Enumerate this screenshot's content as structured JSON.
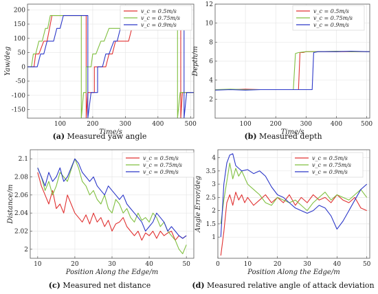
{
  "colors": {
    "red": "#e03030",
    "green": "#7fbf3f",
    "blue": "#2a36c8",
    "grid": "#e6e6e6",
    "axis": "#555555"
  },
  "captions": [
    {
      "letter": "(a)",
      "text": " Measured yaw angle"
    },
    {
      "letter": "(b)",
      "text": " Measured depth"
    },
    {
      "letter": "(c)",
      "text": " Measured net distance"
    },
    {
      "letter": "(d)",
      "text": " Measured relative angle of attack deviation"
    }
  ],
  "chart_data": [
    {
      "type": "line",
      "xlabel": "Time/s",
      "ylabel": "Yaw/deg",
      "xlim": [
        0,
        510
      ],
      "ylim": [
        -180,
        220
      ],
      "xticks": [
        100,
        200,
        300,
        400,
        500
      ],
      "yticks": [
        -150,
        -100,
        -50,
        0,
        50,
        100,
        150,
        200
      ],
      "grid": true,
      "legend_position": "top-right",
      "series": [
        {
          "name": "v_c = 0.5m/s",
          "color": "red",
          "x": [
            0,
            20,
            25,
            35,
            50,
            60,
            75,
            80,
            100,
            180,
            180,
            185,
            195,
            205,
            205,
            215,
            220,
            240,
            250,
            260,
            270,
            280,
            300,
            310,
            320,
            330,
            340,
            350,
            360,
            375,
            380,
            400,
            470,
            470,
            475,
            490,
            495,
            495,
            510
          ],
          "y": [
            0,
            0,
            45,
            45,
            90,
            90,
            180,
            180,
            180,
            180,
            -180,
            -90,
            -90,
            -90,
            0,
            0,
            0,
            0,
            45,
            45,
            90,
            90,
            90,
            90,
            135,
            135,
            180,
            180,
            180,
            180,
            180,
            180,
            180,
            -180,
            -90,
            -90,
            -90,
            -90,
            -90
          ]
        },
        {
          "name": "v_c = 0.75m/s",
          "color": "green",
          "x": [
            0,
            12,
            18,
            25,
            35,
            45,
            55,
            62,
            70,
            165,
            165,
            172,
            180,
            180,
            195,
            200,
            210,
            225,
            235,
            250,
            260,
            290,
            300,
            320,
            330,
            360,
            370,
            460,
            460,
            468,
            485,
            485,
            510
          ],
          "y": [
            0,
            0,
            45,
            45,
            90,
            90,
            135,
            135,
            180,
            180,
            -180,
            -90,
            -90,
            0,
            0,
            45,
            45,
            90,
            90,
            135,
            135,
            135,
            135,
            180,
            180,
            180,
            180,
            180,
            -180,
            -90,
            -90,
            -90,
            -90
          ]
        },
        {
          "name": "v_c = 0.9m/s",
          "color": "blue",
          "x": [
            0,
            30,
            40,
            50,
            60,
            80,
            90,
            100,
            110,
            185,
            185,
            195,
            215,
            215,
            230,
            240,
            250,
            265,
            275,
            285,
            300,
            310,
            330,
            345,
            355,
            370,
            380,
            480,
            480,
            488,
            500,
            510
          ],
          "y": [
            0,
            0,
            45,
            45,
            90,
            90,
            135,
            135,
            180,
            180,
            -180,
            -90,
            -90,
            0,
            0,
            45,
            45,
            90,
            90,
            135,
            135,
            135,
            135,
            180,
            180,
            180,
            180,
            180,
            -180,
            -90,
            -90,
            -90
          ]
        }
      ]
    },
    {
      "type": "line",
      "xlabel": "Time/s",
      "ylabel": "Depth/m",
      "xlim": [
        0,
        510
      ],
      "ylim": [
        0,
        12
      ],
      "xticks": [
        100,
        200,
        300,
        400,
        500
      ],
      "yticks": [
        2,
        4,
        6,
        8,
        10,
        12
      ],
      "grid": true,
      "legend_position": "top-right",
      "series": [
        {
          "name": "v_c = 0.5m/s",
          "color": "red",
          "x": [
            0,
            50,
            100,
            150,
            200,
            250,
            275,
            280,
            290,
            300,
            350,
            400,
            450,
            510
          ],
          "y": [
            3.0,
            3.0,
            3.05,
            3.0,
            3.0,
            3.0,
            3.0,
            6.9,
            6.9,
            7.0,
            7.0,
            7.0,
            7.0,
            7.0
          ]
        },
        {
          "name": "v_c = 0.75m/s",
          "color": "green",
          "x": [
            0,
            50,
            100,
            150,
            200,
            250,
            258,
            265,
            275,
            300,
            350,
            400,
            450,
            510
          ],
          "y": [
            3.0,
            3.05,
            3.0,
            3.0,
            3.0,
            3.0,
            3.0,
            6.8,
            6.9,
            7.0,
            7.0,
            7.05,
            7.0,
            7.0
          ]
        },
        {
          "name": "v_c = 0.9m/s",
          "color": "blue",
          "x": [
            0,
            50,
            100,
            150,
            200,
            250,
            300,
            320,
            325,
            340,
            400,
            450,
            500,
            510
          ],
          "y": [
            2.95,
            3.0,
            2.95,
            3.0,
            3.0,
            3.0,
            3.0,
            3.0,
            6.9,
            7.0,
            7.0,
            7.05,
            7.0,
            7.0
          ]
        }
      ]
    },
    {
      "type": "line",
      "xlabel": "Position Along the Edge/m",
      "ylabel": "Distance/m",
      "xlim": [
        8,
        52
      ],
      "ylim": [
        1.99,
        2.11
      ],
      "xticks": [
        10,
        20,
        30,
        40,
        50
      ],
      "yticks": [
        2.0,
        2.02,
        2.04,
        2.06,
        2.08,
        2.1
      ],
      "ytick_labels": [
        "2",
        "2.02",
        "2.04",
        "2.06",
        "2.08",
        "2.1"
      ],
      "grid": true,
      "legend_position": "top-right",
      "series": [
        {
          "name": "v_c = 0.5m/s",
          "color": "red",
          "x": [
            10,
            11,
            12,
            13,
            14,
            15,
            16,
            17,
            18,
            19,
            20,
            21,
            22,
            23,
            24,
            25,
            26,
            27,
            28,
            29,
            30,
            31,
            32,
            33,
            34,
            35,
            36,
            37,
            38,
            39,
            40,
            41,
            42,
            43,
            44,
            45,
            46,
            47,
            48,
            49,
            50
          ],
          "y": [
            2.085,
            2.07,
            2.06,
            2.05,
            2.065,
            2.045,
            2.05,
            2.04,
            2.06,
            2.05,
            2.04,
            2.035,
            2.03,
            2.038,
            2.028,
            2.04,
            2.03,
            2.035,
            2.025,
            2.032,
            2.02,
            2.028,
            2.03,
            2.035,
            2.025,
            2.02,
            2.015,
            2.02,
            2.01,
            2.018,
            2.015,
            2.02,
            2.012,
            2.02,
            2.015,
            2.018,
            2.02,
            2.01,
            2.015,
            2.012,
            2.015
          ]
        },
        {
          "name": "v_c = 0.75m/s",
          "color": "green",
          "x": [
            10,
            11,
            12,
            13,
            14,
            15,
            16,
            17,
            18,
            19,
            20,
            21,
            22,
            23,
            24,
            25,
            26,
            27,
            28,
            29,
            30,
            31,
            32,
            33,
            34,
            35,
            36,
            37,
            38,
            39,
            40,
            41,
            42,
            43,
            44,
            45,
            46,
            47,
            48,
            49,
            50
          ],
          "y": [
            2.09,
            2.08,
            2.065,
            2.075,
            2.06,
            2.07,
            2.085,
            2.08,
            2.075,
            2.088,
            2.1,
            2.09,
            2.075,
            2.07,
            2.06,
            2.065,
            2.055,
            2.05,
            2.06,
            2.045,
            2.04,
            2.055,
            2.05,
            2.04,
            2.045,
            2.035,
            2.03,
            2.04,
            2.032,
            2.035,
            2.03,
            2.04,
            2.035,
            2.025,
            2.03,
            2.02,
            2.015,
            2.01,
            2.0,
            1.995,
            2.005
          ]
        },
        {
          "name": "v_c = 0.9m/s",
          "color": "blue",
          "x": [
            10,
            11,
            12,
            13,
            14,
            15,
            16,
            17,
            18,
            19,
            20,
            21,
            22,
            23,
            24,
            25,
            26,
            27,
            28,
            29,
            30,
            31,
            32,
            33,
            34,
            35,
            36,
            37,
            38,
            39,
            40,
            41,
            42,
            43,
            44,
            45,
            46,
            47,
            48,
            49,
            50
          ],
          "y": [
            2.09,
            2.08,
            2.07,
            2.085,
            2.075,
            2.08,
            2.09,
            2.075,
            2.08,
            2.09,
            2.1,
            2.095,
            2.085,
            2.08,
            2.075,
            2.08,
            2.07,
            2.065,
            2.06,
            2.07,
            2.065,
            2.06,
            2.055,
            2.06,
            2.05,
            2.045,
            2.04,
            2.035,
            2.03,
            2.02,
            2.025,
            2.03,
            2.04,
            2.035,
            2.03,
            2.02,
            2.025,
            2.02,
            2.015,
            2.012,
            2.015
          ]
        }
      ]
    },
    {
      "type": "line",
      "xlabel": "Position Along the Edge/m",
      "ylabel": "Angle Error/deg",
      "xlim": [
        0,
        51
      ],
      "ylim": [
        0.2,
        4.3
      ],
      "xticks": [
        0,
        10,
        20,
        30,
        40,
        50
      ],
      "yticks": [
        1,
        1.5,
        2,
        2.5,
        3,
        3.5,
        4
      ],
      "grid": true,
      "legend_position": "top-right",
      "series": [
        {
          "name": "v_c = 0.5m/s",
          "color": "red",
          "x": [
            1,
            2,
            3,
            4,
            5,
            6,
            7,
            8,
            9,
            10,
            12,
            14,
            16,
            18,
            20,
            22,
            24,
            26,
            28,
            30,
            32,
            34,
            36,
            38,
            40,
            42,
            44,
            46,
            48,
            50
          ],
          "y": [
            0.3,
            1.2,
            2.3,
            2.6,
            2.2,
            2.7,
            2.4,
            2.6,
            2.3,
            2.5,
            2.2,
            2.4,
            2.6,
            2.3,
            2.5,
            2.3,
            2.6,
            2.2,
            2.5,
            2.3,
            2.6,
            2.4,
            2.5,
            2.3,
            2.6,
            2.4,
            2.3,
            2.5,
            2.1,
            2.0
          ]
        },
        {
          "name": "v_c = 0.75m/s",
          "color": "green",
          "x": [
            1,
            2,
            3,
            4,
            5,
            6,
            7,
            8,
            10,
            12,
            14,
            16,
            18,
            20,
            22,
            24,
            26,
            28,
            30,
            32,
            34,
            36,
            38,
            40,
            42,
            44,
            46,
            48,
            50
          ],
          "y": [
            1.5,
            2.4,
            3.1,
            3.8,
            3.2,
            3.6,
            3.3,
            3.5,
            3.0,
            2.8,
            2.6,
            2.3,
            2.2,
            2.5,
            2.4,
            2.3,
            2.4,
            2.2,
            2.0,
            2.3,
            2.5,
            2.7,
            2.4,
            2.6,
            2.5,
            2.4,
            2.6,
            2.8,
            2.5
          ]
        },
        {
          "name": "v_c = 0.9m/s",
          "color": "blue",
          "x": [
            1,
            1.5,
            2,
            3,
            4,
            5,
            6,
            7,
            8,
            10,
            12,
            14,
            16,
            18,
            20,
            22,
            24,
            26,
            28,
            30,
            32,
            34,
            36,
            38,
            40,
            42,
            44,
            46,
            48,
            50
          ],
          "y": [
            1.0,
            2.0,
            3.0,
            3.8,
            4.1,
            4.15,
            3.7,
            3.6,
            3.5,
            3.55,
            3.4,
            3.5,
            3.3,
            2.9,
            2.6,
            2.5,
            2.3,
            2.1,
            2.0,
            1.9,
            2.0,
            2.2,
            2.1,
            1.8,
            1.3,
            1.6,
            2.0,
            2.4,
            2.8,
            3.0
          ]
        }
      ]
    }
  ]
}
